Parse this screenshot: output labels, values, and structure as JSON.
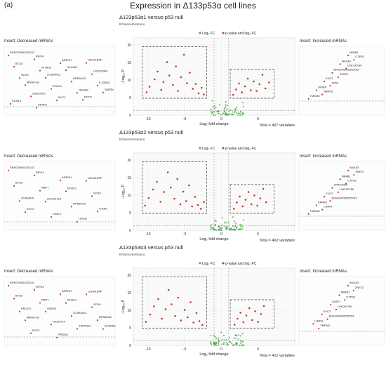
{
  "figure": {
    "panel_letter": "(a)",
    "title": "Expression in Δ133p53α cell lines",
    "colors": {
      "up_red": "#c0392b",
      "down_green": "#4aa84a",
      "ns_grey": "#9e9e9e",
      "grid": "#ececec",
      "box": "#333333"
    }
  },
  "chart_data": [
    {
      "type": "scatter",
      "subtitle": "Δ133p53α1 versus p53 null",
      "enhanced_label": "EnhancedVolcano",
      "legend": [
        "Log₂ FC",
        "p-value and log₂ FC"
      ],
      "xlabel": "Log₂ fold change",
      "ylabel": "-Log₁₀ P",
      "xlim": [
        -12,
        10
      ],
      "ylim": [
        0,
        22
      ],
      "xticks": [
        "-10",
        "-5",
        "0",
        "5"
      ],
      "yticks": [
        "0",
        "5",
        "10",
        "15",
        "20"
      ],
      "total": "Total = 467 variables",
      "inset_left_title": "Insert: Decreased mRNAs",
      "inset_right_title": "Insert: Increased mRNAs",
      "down_labels": [
        "ENSG00000232111",
        "RIPK4",
        "ADPRH",
        "LDHALBFP",
        "BTLB",
        "ATGRI1",
        "ALCAM",
        "LINC00964",
        "SOX9",
        "ZC3HAV1L",
        "RPS6KA2",
        "IL13RA2",
        "MAGE-A3",
        "EFHC1",
        "OBLNR",
        "SMPDL",
        "SUMO1P1",
        "EVC2",
        "PCTP",
        "SCML4",
        "AKAP2"
      ],
      "up_labels": [
        "NR4B1",
        "CTPS2",
        "ANXA3",
        "LINC00780",
        "ENSG00000255763",
        "STAT5",
        "EXC2",
        "TP53",
        "LIMKA",
        "RBP03",
        "TMEM2"
      ],
      "down_points": [
        [
          -10.2,
          6.5
        ],
        [
          -9.8,
          8.1
        ],
        [
          -9.1,
          10.2
        ],
        [
          -8.7,
          12.4
        ],
        [
          -8.2,
          7.2
        ],
        [
          -7.9,
          9.4
        ],
        [
          -7.4,
          15.1
        ],
        [
          -7.1,
          11.3
        ],
        [
          -6.6,
          8.6
        ],
        [
          -6.2,
          13.9
        ],
        [
          -5.9,
          6.9
        ],
        [
          -5.5,
          10.8
        ],
        [
          -5.1,
          17.2
        ],
        [
          -4.7,
          9.1
        ],
        [
          -4.3,
          12.1
        ],
        [
          -3.9,
          7.5
        ],
        [
          -3.5,
          8.9
        ],
        [
          -3.1,
          6.2
        ],
        [
          -2.7,
          7.8
        ],
        [
          -2.4,
          5.9
        ]
      ],
      "up_points": [
        [
          1.6,
          5.8
        ],
        [
          2.0,
          7.3
        ],
        [
          2.4,
          9.0
        ],
        [
          2.8,
          6.5
        ],
        [
          3.2,
          8.2
        ],
        [
          3.6,
          10.4
        ],
        [
          4.0,
          7.1
        ],
        [
          4.4,
          9.6
        ],
        [
          4.8,
          6.9
        ],
        [
          5.2,
          8.8
        ],
        [
          5.6,
          11.5
        ],
        [
          6.0,
          7.6
        ],
        [
          6.5,
          9.3
        ]
      ]
    },
    {
      "type": "scatter",
      "subtitle": "Δ133p53α2 versus p53 null",
      "enhanced_label": "EnhancedVolcano",
      "legend": [
        "Log₂ FC",
        "p-value and log₂ FC"
      ],
      "xlabel": "Log₂ fold change",
      "ylabel": "-Log₁₀ P",
      "xlim": [
        -12,
        10
      ],
      "ylim": [
        0,
        22
      ],
      "xticks": [
        "-10",
        "-5",
        "0",
        "5"
      ],
      "yticks": [
        "0",
        "5",
        "10",
        "15",
        "20"
      ],
      "total": "Total = 462 variables",
      "inset_left_title": "Insert: Decreased mRNAs",
      "inset_right_title": "Insert: Increased mRNAs",
      "down_labels": [
        "ENSG00000232111",
        "RIPK4",
        "ADPRH",
        "LDHALBFP",
        "BTLB",
        "RBP7",
        "EFHC1",
        "SOX9",
        "ZC3HAV1L",
        "LINC01419",
        "RPS6KA2",
        "ICAM1",
        "EVC2",
        "LIMC3",
        "ITPKB"
      ],
      "up_labels": [
        "ANXA3",
        "ZNF22",
        "NR4B1",
        "CTPS2",
        "CRACRDA",
        "LINC00780",
        "EXC2",
        "ENSG00000255763",
        "SAMP1",
        "LIMKA",
        "TMEM2"
      ],
      "down_points": [
        [
          -10.4,
          7.0
        ],
        [
          -9.9,
          9.2
        ],
        [
          -9.3,
          11.6
        ],
        [
          -8.8,
          13.8
        ],
        [
          -8.3,
          8.1
        ],
        [
          -7.8,
          10.9
        ],
        [
          -7.3,
          16.5
        ],
        [
          -6.9,
          12.2
        ],
        [
          -6.4,
          9.0
        ],
        [
          -6.0,
          14.6
        ],
        [
          -5.6,
          7.4
        ],
        [
          -5.2,
          11.0
        ],
        [
          -4.8,
          8.3
        ],
        [
          -4.4,
          12.8
        ],
        [
          -4.0,
          6.8
        ],
        [
          -3.6,
          9.5
        ],
        [
          -3.2,
          7.2
        ],
        [
          -2.8,
          6.1
        ],
        [
          -2.4,
          8.0
        ]
      ],
      "up_points": [
        [
          1.7,
          6.1
        ],
        [
          2.1,
          7.9
        ],
        [
          2.5,
          9.6
        ],
        [
          2.9,
          6.8
        ],
        [
          3.3,
          8.7
        ],
        [
          3.7,
          10.9
        ],
        [
          4.1,
          7.4
        ],
        [
          4.5,
          9.9
        ],
        [
          4.9,
          7.0
        ],
        [
          5.3,
          9.1
        ],
        [
          5.7,
          11.8
        ],
        [
          6.1,
          8.0
        ]
      ]
    },
    {
      "type": "scatter",
      "subtitle": "Δ133p53α3 versus p53 null",
      "enhanced_label": "EnhancedVolcano",
      "legend": [
        "Log₂ FC",
        "p-value and log₂ FC"
      ],
      "xlabel": "Log₂ fold change",
      "ylabel": "-Log₁₀ P",
      "xlim": [
        -12,
        10
      ],
      "ylim": [
        0,
        22
      ],
      "xticks": [
        "-10",
        "-5",
        "0",
        "5"
      ],
      "yticks": [
        "0",
        "5",
        "10",
        "15",
        "20"
      ],
      "total": "Total = 412 variables",
      "inset_left_title": "Insert: Decreased mRNAs",
      "inset_right_title": "Insert: Increased mRNAs",
      "down_labels": [
        "ENSG00000232111",
        "RIPK4",
        "ADPRH",
        "LDHALBFP",
        "BTLB",
        "RBP7",
        "EFHC1",
        "SOX9",
        "PROCD",
        "SDRG1",
        "ZC3HAV1L",
        "RPS6KA2",
        "MAGE-A3",
        "GALNT14",
        "TSPAN19",
        "SCARB1",
        "EVC2",
        "PRDM1"
      ],
      "up_labels": [
        "ANXA3",
        "ZNF22",
        "NR4B1",
        "CTPS2",
        "OANT",
        "LINC00780",
        "EXC2",
        "ENSG00000255763",
        "LIMKA",
        "TMEM2"
      ],
      "down_points": [
        [
          -10.3,
          6.7
        ],
        [
          -9.7,
          8.8
        ],
        [
          -9.2,
          11.1
        ],
        [
          -8.6,
          13.2
        ],
        [
          -8.1,
          7.6
        ],
        [
          -7.6,
          10.3
        ],
        [
          -7.2,
          15.8
        ],
        [
          -6.8,
          11.7
        ],
        [
          -6.3,
          8.4
        ],
        [
          -5.9,
          13.6
        ],
        [
          -5.5,
          7.1
        ],
        [
          -5.0,
          10.1
        ],
        [
          -4.6,
          8.0
        ],
        [
          -4.2,
          12.3
        ],
        [
          -3.8,
          6.5
        ],
        [
          -3.4,
          9.2
        ],
        [
          -3.0,
          6.9
        ],
        [
          -2.6,
          5.8
        ]
      ],
      "up_points": [
        [
          1.8,
          5.9
        ],
        [
          2.2,
          7.6
        ],
        [
          2.6,
          9.3
        ],
        [
          3.0,
          6.6
        ],
        [
          3.4,
          8.5
        ],
        [
          3.8,
          10.6
        ],
        [
          4.2,
          7.2
        ],
        [
          4.6,
          9.7
        ],
        [
          5.0,
          6.7
        ],
        [
          5.4,
          8.9
        ],
        [
          5.8,
          11.2
        ]
      ]
    }
  ]
}
